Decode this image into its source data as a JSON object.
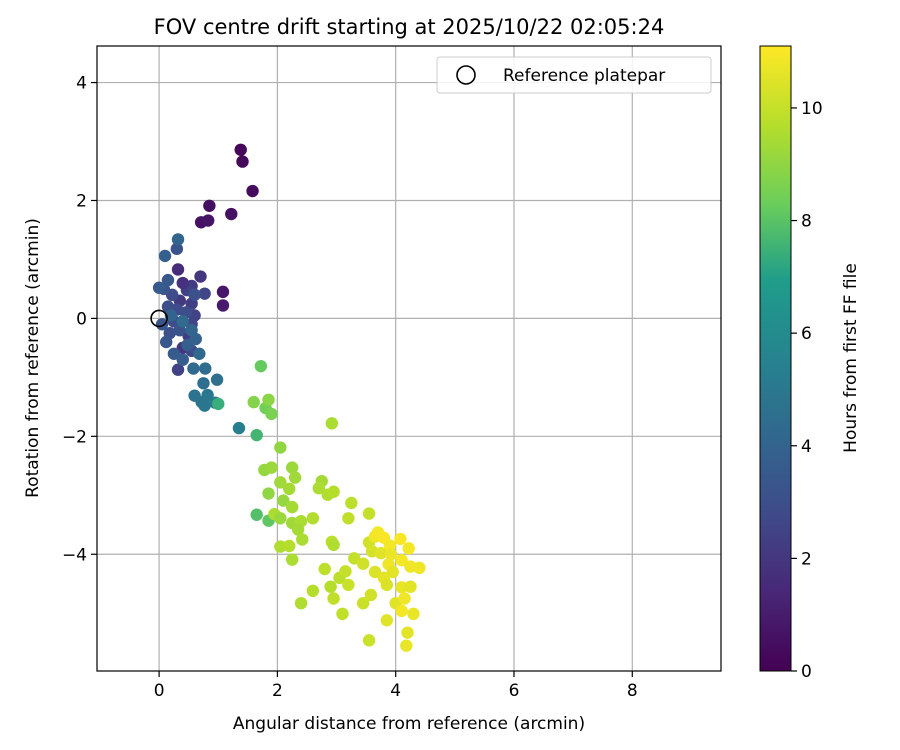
{
  "chart_data": {
    "type": "scatter",
    "title": "FOV centre drift starting at 2025/10/22 02:05:24",
    "xlabel": "Angular distance from reference (arcmin)",
    "ylabel": "Rotation from reference (arcmin)",
    "xlim": [
      -1.05,
      9.5
    ],
    "ylim": [
      -5.98,
      4.62
    ],
    "xticks": [
      0,
      2,
      4,
      6,
      8
    ],
    "yticks": [
      -4,
      -2,
      0,
      2,
      4
    ],
    "xtick_labels": [
      "0",
      "2",
      "4",
      "6",
      "8"
    ],
    "ytick_labels": [
      "−4",
      "−2",
      "0",
      "2",
      "4"
    ],
    "grid": true,
    "legend": {
      "position": "top-right",
      "entries": [
        {
          "label": "Reference platepar",
          "marker": "open-circle"
        }
      ]
    },
    "reference_point": {
      "x": 0.0,
      "y": 0.0
    },
    "colorbar": {
      "label": "Hours from first FF file",
      "range": [
        0,
        11.1
      ],
      "ticks": [
        0,
        2,
        4,
        6,
        8,
        10
      ],
      "tick_labels": [
        "0",
        "2",
        "4",
        "6",
        "8",
        "10"
      ],
      "colormap": [
        "#440154",
        "#482777",
        "#3f4a8a",
        "#31678e",
        "#26838f",
        "#1f9d8a",
        "#6cce5a",
        "#b6de2b",
        "#fee825"
      ]
    },
    "series": [
      {
        "color_by": "hours",
        "points": [
          {
            "x": 1.38,
            "y": 2.86,
            "c": 0.2
          },
          {
            "x": 1.41,
            "y": 2.66,
            "c": 0.3
          },
          {
            "x": 1.58,
            "y": 2.16,
            "c": 0.4
          },
          {
            "x": 0.85,
            "y": 1.91,
            "c": 0.5
          },
          {
            "x": 0.71,
            "y": 1.63,
            "c": 0.6
          },
          {
            "x": 0.83,
            "y": 1.66,
            "c": 0.7
          },
          {
            "x": 1.22,
            "y": 1.77,
            "c": 0.6
          },
          {
            "x": 1.08,
            "y": 0.45,
            "c": 0.8
          },
          {
            "x": 1.08,
            "y": 0.22,
            "c": 0.9
          },
          {
            "x": 0.32,
            "y": 0.83,
            "c": 1.6
          },
          {
            "x": 0.7,
            "y": 0.71,
            "c": 2.0
          },
          {
            "x": 0.77,
            "y": 0.42,
            "c": 2.6
          },
          {
            "x": 0.55,
            "y": 0.55,
            "c": 2.2
          },
          {
            "x": 0.47,
            "y": 0.48,
            "c": 2.4
          },
          {
            "x": 0.4,
            "y": 0.6,
            "c": 1.8
          },
          {
            "x": 0.35,
            "y": 0.3,
            "c": 2.1
          },
          {
            "x": 0.55,
            "y": 0.25,
            "c": 2.3
          },
          {
            "x": 0.6,
            "y": 0.05,
            "c": 2.5
          },
          {
            "x": 0.55,
            "y": -0.1,
            "c": 2.6
          },
          {
            "x": 0.5,
            "y": -0.3,
            "c": 2.2
          },
          {
            "x": 0.4,
            "y": -0.5,
            "c": 1.9
          },
          {
            "x": 0.32,
            "y": -0.87,
            "c": 2.4
          },
          {
            "x": 0.55,
            "y": -0.55,
            "c": 2.7
          },
          {
            "x": 0.3,
            "y": 0.15,
            "c": 2.8
          },
          {
            "x": 0.22,
            "y": 0.4,
            "c": 2.9
          },
          {
            "x": 0.15,
            "y": 0.2,
            "c": 3.0
          },
          {
            "x": 0.25,
            "y": -0.05,
            "c": 2.8
          },
          {
            "x": 0.18,
            "y": -0.25,
            "c": 3.1
          },
          {
            "x": 0.35,
            "y": -0.2,
            "c": 3.2
          },
          {
            "x": 0.45,
            "y": 0.1,
            "c": 3.0
          },
          {
            "x": 0.05,
            "y": -0.1,
            "c": 3.3
          },
          {
            "x": 0.12,
            "y": -0.4,
            "c": 3.4
          },
          {
            "x": 0.08,
            "y": 0.5,
            "c": 3.3
          },
          {
            "x": 0.15,
            "y": 0.65,
            "c": 3.5
          },
          {
            "x": 0.3,
            "y": 1.18,
            "c": 3.2
          },
          {
            "x": 0.1,
            "y": 1.06,
            "c": 3.8
          },
          {
            "x": 0.32,
            "y": 1.34,
            "c": 4.0
          },
          {
            "x": 0.25,
            "y": -0.6,
            "c": 3.6
          },
          {
            "x": 0.4,
            "y": -0.7,
            "c": 3.7
          },
          {
            "x": 0.48,
            "y": -0.45,
            "c": 3.8
          },
          {
            "x": 0.62,
            "y": -0.35,
            "c": 3.9
          },
          {
            "x": 0.55,
            "y": -0.2,
            "c": 4.1
          },
          {
            "x": 0.68,
            "y": -0.6,
            "c": 4.2
          },
          {
            "x": 0.58,
            "y": -0.85,
            "c": 4.3
          },
          {
            "x": 0.78,
            "y": -0.85,
            "c": 4.4
          },
          {
            "x": 0.75,
            "y": -1.1,
            "c": 4.5
          },
          {
            "x": 0.98,
            "y": -1.04,
            "c": 4.6
          },
          {
            "x": 0.6,
            "y": -1.31,
            "c": 4.7
          },
          {
            "x": 0.72,
            "y": -1.42,
            "c": 4.8
          },
          {
            "x": 0.77,
            "y": -1.48,
            "c": 4.9
          },
          {
            "x": 0.82,
            "y": -1.3,
            "c": 5.0
          },
          {
            "x": 0.95,
            "y": -1.43,
            "c": 5.2
          },
          {
            "x": 1.35,
            "y": -1.86,
            "c": 5.3
          },
          {
            "x": 0.2,
            "y": 0.05,
            "c": 4.0
          },
          {
            "x": 0.4,
            "y": -0.05,
            "c": 4.3
          },
          {
            "x": 0.0,
            "y": 0.52,
            "c": 3.6
          },
          {
            "x": 0.6,
            "y": 0.4,
            "c": 3.1
          },
          {
            "x": 1.0,
            "y": -1.45,
            "c": 7.4
          },
          {
            "x": 1.65,
            "y": -1.98,
            "c": 7.6
          },
          {
            "x": 1.72,
            "y": -0.81,
            "c": 8.2
          },
          {
            "x": 1.65,
            "y": -3.33,
            "c": 7.9
          },
          {
            "x": 1.85,
            "y": -3.43,
            "c": 8.1
          },
          {
            "x": 1.8,
            "y": -1.52,
            "c": 8.4
          },
          {
            "x": 1.9,
            "y": -1.62,
            "c": 8.6
          },
          {
            "x": 1.6,
            "y": -1.42,
            "c": 8.8
          },
          {
            "x": 1.85,
            "y": -1.38,
            "c": 8.9
          },
          {
            "x": 2.05,
            "y": -2.19,
            "c": 9.0
          },
          {
            "x": 1.78,
            "y": -2.57,
            "c": 9.1
          },
          {
            "x": 1.9,
            "y": -2.53,
            "c": 9.2
          },
          {
            "x": 1.85,
            "y": -2.97,
            "c": 9.0
          },
          {
            "x": 2.05,
            "y": -2.78,
            "c": 9.3
          },
          {
            "x": 2.2,
            "y": -2.89,
            "c": 9.4
          },
          {
            "x": 2.25,
            "y": -2.53,
            "c": 9.2
          },
          {
            "x": 2.3,
            "y": -2.7,
            "c": 9.3
          },
          {
            "x": 2.1,
            "y": -3.09,
            "c": 9.1
          },
          {
            "x": 2.25,
            "y": -3.2,
            "c": 9.4
          },
          {
            "x": 1.95,
            "y": -3.32,
            "c": 9.5
          },
          {
            "x": 2.05,
            "y": -3.39,
            "c": 9.2
          },
          {
            "x": 2.25,
            "y": -3.47,
            "c": 9.3
          },
          {
            "x": 2.4,
            "y": -3.44,
            "c": 9.5
          },
          {
            "x": 2.6,
            "y": -3.39,
            "c": 9.6
          },
          {
            "x": 2.35,
            "y": -3.58,
            "c": 9.4
          },
          {
            "x": 2.42,
            "y": -3.75,
            "c": 9.5
          },
          {
            "x": 2.05,
            "y": -3.87,
            "c": 9.6
          },
          {
            "x": 2.2,
            "y": -3.86,
            "c": 9.7
          },
          {
            "x": 2.25,
            "y": -4.09,
            "c": 9.5
          },
          {
            "x": 2.4,
            "y": -4.83,
            "c": 9.6
          },
          {
            "x": 2.6,
            "y": -4.62,
            "c": 9.7
          },
          {
            "x": 2.75,
            "y": -2.76,
            "c": 9.4
          },
          {
            "x": 2.7,
            "y": -2.88,
            "c": 9.5
          },
          {
            "x": 2.85,
            "y": -2.99,
            "c": 9.6
          },
          {
            "x": 2.95,
            "y": -2.94,
            "c": 9.7
          },
          {
            "x": 2.92,
            "y": -1.78,
            "c": 9.5
          },
          {
            "x": 2.8,
            "y": -4.25,
            "c": 9.8
          },
          {
            "x": 2.9,
            "y": -4.55,
            "c": 9.7
          },
          {
            "x": 2.92,
            "y": -3.79,
            "c": 9.8
          },
          {
            "x": 2.95,
            "y": -3.84,
            "c": 9.6
          },
          {
            "x": 2.95,
            "y": -4.75,
            "c": 9.9
          },
          {
            "x": 3.05,
            "y": -4.4,
            "c": 9.8
          },
          {
            "x": 3.15,
            "y": -4.29,
            "c": 10.0
          },
          {
            "x": 3.1,
            "y": -5.01,
            "c": 9.9
          },
          {
            "x": 3.2,
            "y": -4.52,
            "c": 10.1
          },
          {
            "x": 3.25,
            "y": -3.13,
            "c": 9.8
          },
          {
            "x": 3.2,
            "y": -3.39,
            "c": 9.9
          },
          {
            "x": 3.3,
            "y": -4.07,
            "c": 10.0
          },
          {
            "x": 3.45,
            "y": -4.16,
            "c": 10.2
          },
          {
            "x": 3.45,
            "y": -4.83,
            "c": 10.1
          },
          {
            "x": 3.55,
            "y": -3.31,
            "c": 10.0
          },
          {
            "x": 3.55,
            "y": -3.8,
            "c": 10.2
          },
          {
            "x": 3.6,
            "y": -3.95,
            "c": 10.3
          },
          {
            "x": 3.58,
            "y": -4.69,
            "c": 10.2
          },
          {
            "x": 3.55,
            "y": -5.46,
            "c": 10.1
          },
          {
            "x": 3.65,
            "y": -4.3,
            "c": 10.4
          },
          {
            "x": 3.75,
            "y": -3.98,
            "c": 10.5
          },
          {
            "x": 3.8,
            "y": -4.4,
            "c": 10.6
          },
          {
            "x": 3.85,
            "y": -4.52,
            "c": 10.4
          },
          {
            "x": 3.85,
            "y": -5.12,
            "c": 10.5
          },
          {
            "x": 3.65,
            "y": -3.7,
            "c": 10.8
          },
          {
            "x": 3.7,
            "y": -3.63,
            "c": 10.9
          },
          {
            "x": 3.8,
            "y": -3.72,
            "c": 11.0
          },
          {
            "x": 3.9,
            "y": -3.85,
            "c": 10.9
          },
          {
            "x": 3.92,
            "y": -4.0,
            "c": 10.7
          },
          {
            "x": 3.88,
            "y": -4.17,
            "c": 10.8
          },
          {
            "x": 3.95,
            "y": -4.3,
            "c": 10.6
          },
          {
            "x": 4.0,
            "y": -4.83,
            "c": 10.5
          },
          {
            "x": 4.08,
            "y": -3.74,
            "c": 11.0
          },
          {
            "x": 4.1,
            "y": -4.1,
            "c": 10.9
          },
          {
            "x": 4.1,
            "y": -4.56,
            "c": 10.7
          },
          {
            "x": 4.15,
            "y": -4.75,
            "c": 10.8
          },
          {
            "x": 4.2,
            "y": -5.33,
            "c": 10.6
          },
          {
            "x": 4.18,
            "y": -5.55,
            "c": 10.7
          },
          {
            "x": 4.22,
            "y": -3.9,
            "c": 10.9
          },
          {
            "x": 4.25,
            "y": -4.21,
            "c": 10.8
          },
          {
            "x": 4.25,
            "y": -4.55,
            "c": 10.6
          },
          {
            "x": 4.3,
            "y": -5.01,
            "c": 10.7
          },
          {
            "x": 4.4,
            "y": -4.23,
            "c": 10.8
          },
          {
            "x": 4.1,
            "y": -4.96,
            "c": 10.9
          }
        ]
      }
    ]
  }
}
